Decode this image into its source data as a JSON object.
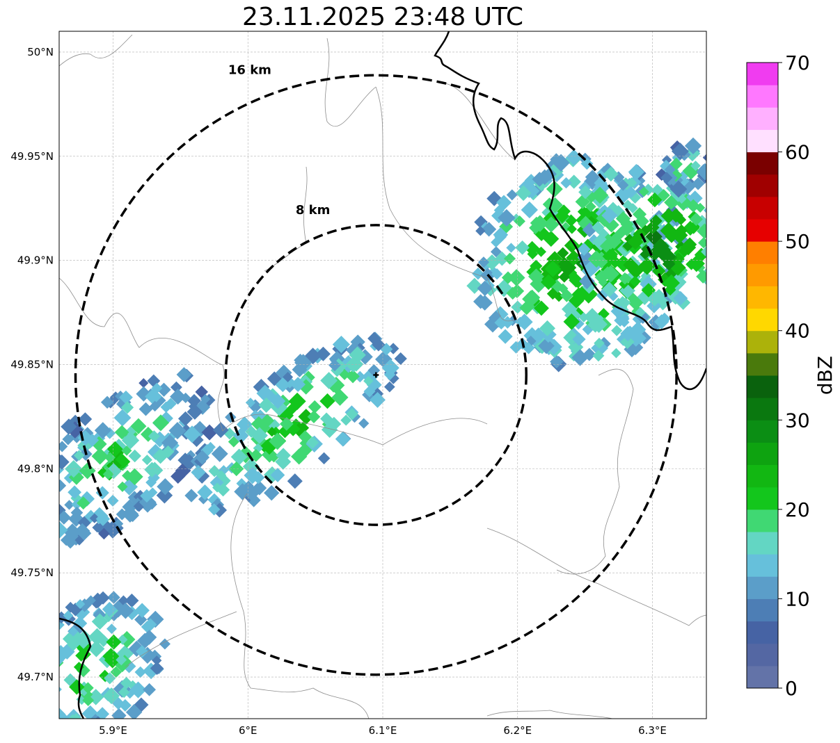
{
  "title": "23.11.2025 23:48 UTC",
  "map": {
    "lon_ticks": [
      {
        "value": 5.9,
        "label": "5.9°E"
      },
      {
        "value": 6.0,
        "label": "6°E"
      },
      {
        "value": 6.1,
        "label": "6.1°E"
      },
      {
        "value": 6.2,
        "label": "6.2°E"
      },
      {
        "value": 6.3,
        "label": "6.3°E"
      }
    ],
    "lat_ticks": [
      {
        "value": 50.0,
        "label": "50°N"
      },
      {
        "value": 49.95,
        "label": "49.95°N"
      },
      {
        "value": 49.9,
        "label": "49.9°N"
      },
      {
        "value": 49.85,
        "label": "49.85°N"
      },
      {
        "value": 49.8,
        "label": "49.8°N"
      },
      {
        "value": 49.75,
        "label": "49.75°N"
      },
      {
        "value": 49.7,
        "label": "49.7°N"
      }
    ],
    "extent": {
      "lon_min": 5.86,
      "lon_max": 6.34,
      "lat_min": 49.68,
      "lat_max": 50.01
    },
    "radar_site": {
      "lon": 6.095,
      "lat": 49.845
    },
    "range_rings": [
      {
        "label": "8 km",
        "radius_km": 8
      },
      {
        "label": "16 km",
        "radius_km": 16
      }
    ],
    "colors": {
      "grid": "#b0b0b0",
      "border": "#000000",
      "admin": "#8c8c8c"
    }
  },
  "colorbar": {
    "label": "dBZ",
    "min": 0,
    "max": 70,
    "step": 2.5,
    "tick_labels": [
      "0",
      "10",
      "20",
      "30",
      "40",
      "50",
      "60",
      "70"
    ],
    "colors": [
      "#6373a8",
      "#5467a3",
      "#4663a4",
      "#4d7eb5",
      "#5b9ec9",
      "#66c0db",
      "#63d6c3",
      "#40d873",
      "#13c61c",
      "#12b712",
      "#0ea310",
      "#0b8e14",
      "#0a780f",
      "#0a620d",
      "#4a7a0c",
      "#acb20a",
      "#ffd800",
      "#ffb700",
      "#ff9a00",
      "#ff7f00",
      "#e60000",
      "#c80000",
      "#a00000",
      "#7a0000",
      "#ffe0ff",
      "#ffb0ff",
      "#ff78ff",
      "#f03cf0"
    ]
  },
  "echoes": [
    {
      "lon": 5.905,
      "lat": 49.805,
      "dlon": 0.085,
      "dlat": 0.028,
      "angle": -40,
      "core": 22,
      "edge": 8
    },
    {
      "lon": 6.035,
      "lat": 49.822,
      "dlon": 0.095,
      "dlat": 0.024,
      "angle": -38,
      "core": 24,
      "edge": 10
    },
    {
      "lon": 6.245,
      "lat": 49.9,
      "dlon": 0.08,
      "dlat": 0.05,
      "angle": -30,
      "core": 26,
      "edge": 12
    },
    {
      "lon": 6.3,
      "lat": 49.905,
      "dlon": 0.055,
      "dlat": 0.03,
      "angle": -35,
      "core": 32,
      "edge": 14
    },
    {
      "lon": 5.885,
      "lat": 49.705,
      "dlon": 0.06,
      "dlat": 0.03,
      "angle": -40,
      "core": 22,
      "edge": 10
    },
    {
      "lon": 6.325,
      "lat": 49.945,
      "dlon": 0.02,
      "dlat": 0.01,
      "angle": -40,
      "core": 22,
      "edge": 8
    }
  ]
}
